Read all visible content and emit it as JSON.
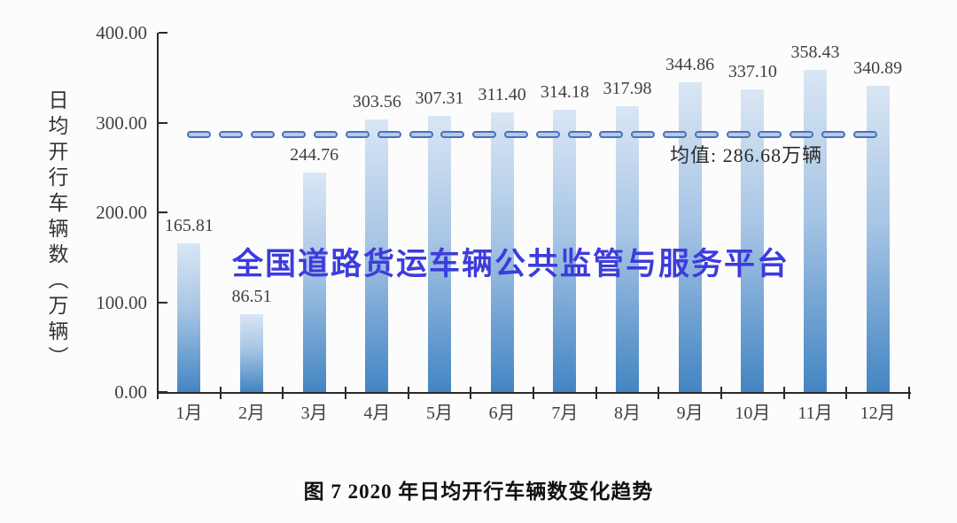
{
  "figure": {
    "caption": "图 7 2020 年日均开行车辆数变化趋势",
    "watermark": "全国道路货运车辆公共监管与服务平台"
  },
  "chart_data": {
    "type": "bar",
    "title": "图 7 2020 年日均开行车辆数变化趋势",
    "ylabel": "日均开行车辆数（万辆）",
    "xlabel": "",
    "categories": [
      "1月",
      "2月",
      "3月",
      "4月",
      "5月",
      "6月",
      "7月",
      "8月",
      "9月",
      "10月",
      "11月",
      "12月"
    ],
    "values": [
      165.81,
      86.51,
      244.76,
      303.56,
      307.31,
      311.4,
      314.18,
      317.98,
      344.86,
      337.1,
      358.43,
      340.89
    ],
    "value_labels": [
      "165.81",
      "86.51",
      "244.76",
      "303.56",
      "307.31",
      "311.40",
      "314.18",
      "317.98",
      "344.86",
      "337.10",
      "358.43",
      "340.89"
    ],
    "ylim": [
      0,
      400
    ],
    "yticks": {
      "values": [
        400,
        300,
        200,
        100,
        0
      ],
      "labels": [
        "400.00",
        "300.00",
        "200.00",
        "100.00",
        "0.00"
      ]
    },
    "mean_line": {
      "value": 286.68,
      "label": "均值: 286.68万辆",
      "style": "dashed"
    },
    "grid": false,
    "legend": "none",
    "colors": {
      "axis": "#2a2a2a",
      "text": "#3f3f3f",
      "bar_top": "#d9e6f4",
      "bar_mid": "#a7c5e5",
      "bar_bottom": "#4385c2",
      "mean_dash_border": "#4a72b6",
      "mean_dash_fill": "#b7c9e9",
      "watermark": "#3c3cdc"
    }
  }
}
